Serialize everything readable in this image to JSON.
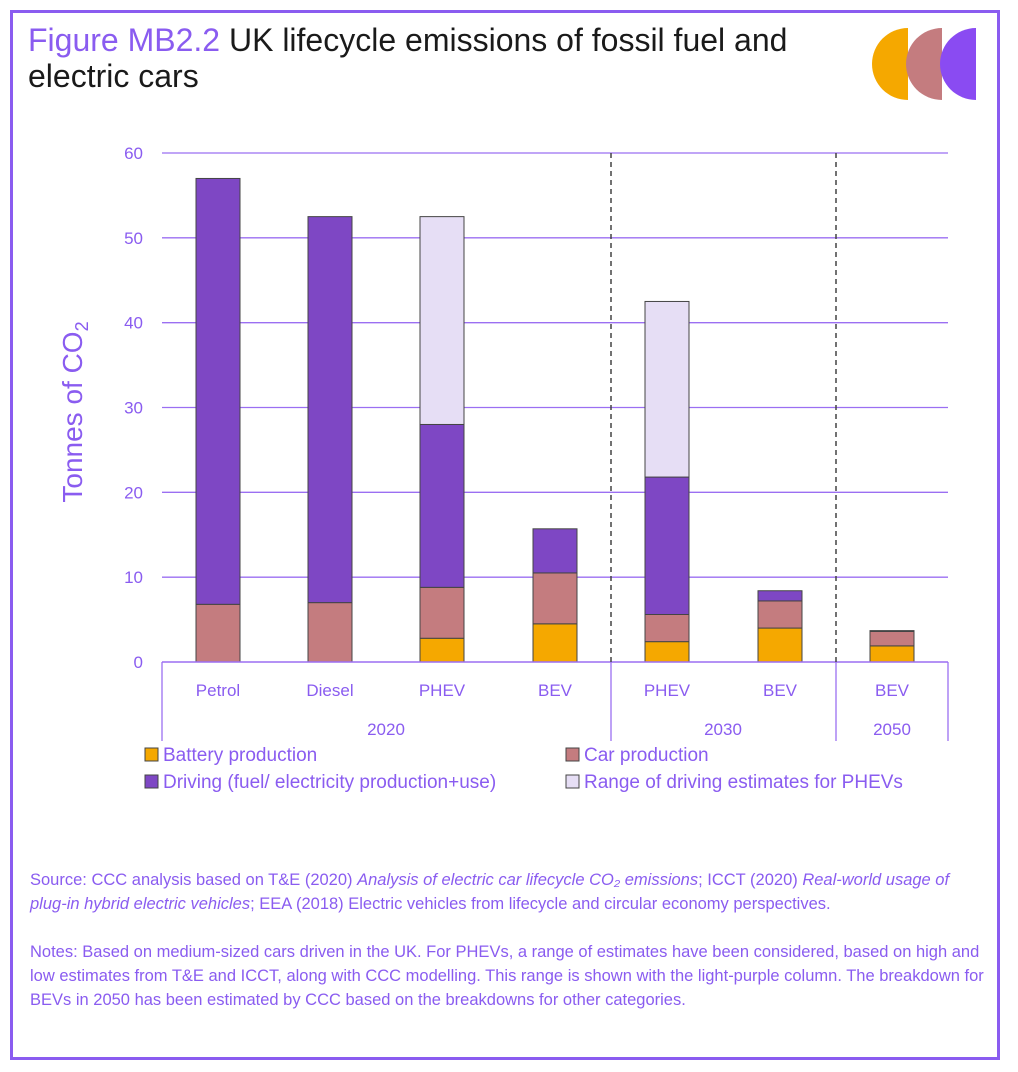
{
  "header": {
    "figure_label": "Figure MB2.2",
    "title": "UK lifecycle emissions of fossil fuel and electric cars"
  },
  "colors": {
    "battery": "#f5a800",
    "car": "#c47c7f",
    "driving": "#7e47c4",
    "range": "#e6def5",
    "accent": "#8a5cf0",
    "axis_text": "#8a5cf0",
    "grid": "#9b6ff2"
  },
  "chart_data": {
    "type": "bar",
    "stacked": true,
    "title": "UK lifecycle emissions of fossil fuel and electric cars",
    "ylabel": "Tonnes of CO2",
    "ylabel_main": "Tonnes of CO",
    "ylabel_sub": "2",
    "ylim": [
      0,
      60
    ],
    "yticks": [
      0,
      10,
      20,
      30,
      40,
      50,
      60
    ],
    "grid": true,
    "categories": [
      "Petrol",
      "Diesel",
      "PHEV",
      "BEV",
      "PHEV",
      "BEV",
      "BEV"
    ],
    "groups": [
      {
        "label": "2020",
        "count": 4
      },
      {
        "label": "2030",
        "count": 2
      },
      {
        "label": "2050",
        "count": 1
      }
    ],
    "series": [
      {
        "name": "Battery production",
        "key": "battery",
        "values": [
          0,
          0,
          2.8,
          4.5,
          2.4,
          4.0,
          1.9
        ]
      },
      {
        "name": "Car production",
        "key": "car",
        "values": [
          6.8,
          7.0,
          6.0,
          6.0,
          3.2,
          3.2,
          1.7
        ]
      },
      {
        "name": "Driving (fuel/electricity production+use)",
        "key": "driving",
        "values": [
          50.2,
          45.5,
          19.2,
          5.2,
          16.2,
          1.2,
          0.1
        ]
      },
      {
        "name": "Range of driving estimates for PHEVs",
        "key": "range",
        "values": [
          0,
          0,
          24.5,
          0,
          20.7,
          0,
          0
        ]
      }
    ],
    "legend_position": "bottom",
    "legend": [
      "Battery production",
      "Car production",
      "Driving (fuel/ electricity production+use)",
      "Range of driving estimates for PHEVs"
    ]
  },
  "source": {
    "prefix": "Source: CCC analysis based on T&E (2020) ",
    "ref1_title": "Analysis of electric car lifecycle CO₂ emissions",
    "mid": "; ICCT (2020) ",
    "ref2_title": "Real-world usage of plug-in hybrid electric vehicles",
    "suffix": "; EEA (2018) Electric vehicles from lifecycle and circular economy perspectives."
  },
  "notes": "Notes: Based on medium-sized cars driven in the UK. For PHEVs, a range of estimates have been considered, based on high and low estimates from T&E and ICCT, along with CCC modelling. This range is shown with the light-purple column. The breakdown for BEVs in 2050 has been estimated by CCC based on the breakdowns for other categories."
}
